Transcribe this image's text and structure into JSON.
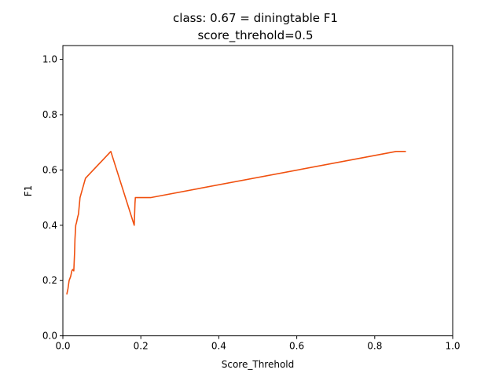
{
  "chart_data": {
    "type": "line",
    "title": "class: 0.67 = diningtable F1",
    "subtitle": "score_threhold=0.5",
    "xlabel": "Score_Threhold",
    "ylabel": "F1",
    "xlim": [
      0.0,
      1.0
    ],
    "ylim": [
      0.0,
      1.05
    ],
    "xticks": [
      "0.0",
      "0.2",
      "0.4",
      "0.6",
      "0.8",
      "1.0"
    ],
    "yticks": [
      "0.0",
      "0.2",
      "0.4",
      "0.6",
      "0.8",
      "1.0"
    ],
    "grid": false,
    "series": [
      {
        "color": "#f0500f",
        "x": [
          0.01,
          0.013,
          0.016,
          0.02,
          0.023,
          0.025,
          0.028,
          0.03,
          0.031,
          0.033,
          0.035,
          0.038,
          0.04,
          0.044,
          0.046,
          0.058,
          0.123,
          0.183,
          0.185,
          0.186,
          0.21,
          0.225,
          0.855,
          0.87,
          0.88
        ],
        "y": [
          0.15,
          0.17,
          0.2,
          0.215,
          0.235,
          0.24,
          0.235,
          0.3,
          0.35,
          0.4,
          0.41,
          0.43,
          0.44,
          0.5,
          0.51,
          0.57,
          0.667,
          0.4,
          0.48,
          0.5,
          0.5,
          0.5,
          0.667,
          0.667,
          0.667
        ]
      }
    ]
  }
}
